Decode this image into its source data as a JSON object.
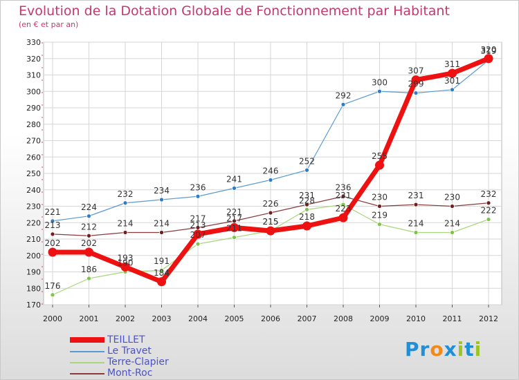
{
  "title": "Evolution de la Dotation Globale de Fonctionnement par Habitant",
  "subtitle": "(en € et par an)",
  "logo": {
    "text": "Proxiti",
    "letters": [
      "P",
      "r",
      "o",
      "x",
      "i",
      "t",
      "i"
    ],
    "colors": [
      "#1f8fd8",
      "#1f8fd8",
      "#f28a1a",
      "#1f8fd8",
      "#9bc428",
      "#1f8fd8",
      "#9bc428"
    ]
  },
  "chart_data": {
    "type": "line",
    "title": "Evolution de la Dotation Globale de Fonctionnement par Habitant",
    "subtitle": "(en € et par an)",
    "xlabel": "",
    "ylabel": "",
    "ylim": [
      170,
      330
    ],
    "yticks": [
      170,
      180,
      190,
      200,
      210,
      220,
      230,
      240,
      250,
      260,
      270,
      280,
      290,
      300,
      310,
      320,
      330
    ],
    "x": [
      "2000",
      "2001",
      "2002",
      "2003",
      "2004",
      "2005",
      "2006",
      "2007",
      "2008",
      "2009",
      "2010",
      "2011",
      "2012"
    ],
    "grid": true,
    "legend": "bottom-left",
    "series": [
      {
        "name": "Le Travet",
        "color": "#5a9ad2",
        "marker": "#2e7bc8",
        "width": 1.2,
        "values": [
          221,
          224,
          232,
          234,
          236,
          241,
          246,
          252,
          292,
          300,
          299,
          301,
          319
        ]
      },
      {
        "name": "Terre-Clapier",
        "color": "#a8d67a",
        "marker": "#7cc44a",
        "width": 1.2,
        "values": [
          176,
          186,
          190,
          191,
          207,
          211,
          215,
          228,
          231,
          219,
          214,
          214,
          222
        ]
      },
      {
        "name": "Mont-Roc",
        "color": "#8a3a3a",
        "marker": "#6e1f1f",
        "width": 1.2,
        "values": [
          213,
          212,
          214,
          214,
          217,
          221,
          226,
          231,
          236,
          230,
          231,
          230,
          232
        ]
      },
      {
        "name": "TEILLET",
        "color": "#ee1111",
        "marker": "#ee1111",
        "width": 7,
        "values": [
          202,
          202,
          193,
          184,
          213,
          217,
          215,
          218,
          223,
          255,
          307,
          311,
          320
        ]
      }
    ],
    "labels": [
      {
        "text": "221",
        "x": "2000",
        "y": 221,
        "pos": "above"
      },
      {
        "text": "224",
        "x": "2001",
        "y": 224,
        "pos": "above"
      },
      {
        "text": "232",
        "x": "2002",
        "y": 232,
        "pos": "above"
      },
      {
        "text": "234",
        "x": "2003",
        "y": 234,
        "pos": "above"
      },
      {
        "text": "236",
        "x": "2004",
        "y": 236,
        "pos": "above"
      },
      {
        "text": "241",
        "x": "2005",
        "y": 241,
        "pos": "above"
      },
      {
        "text": "246",
        "x": "2006",
        "y": 246,
        "pos": "above"
      },
      {
        "text": "252",
        "x": "2007",
        "y": 252,
        "pos": "above"
      },
      {
        "text": "292",
        "x": "2008",
        "y": 292,
        "pos": "above"
      },
      {
        "text": "300",
        "x": "2009",
        "y": 300,
        "pos": "above"
      },
      {
        "text": "299",
        "x": "2010",
        "y": 299,
        "pos": "above"
      },
      {
        "text": "301",
        "x": "2011",
        "y": 301,
        "pos": "above"
      },
      {
        "text": "319",
        "x": "2012",
        "y": 319,
        "pos": "above"
      },
      {
        "text": "176",
        "x": "2000",
        "y": 176,
        "pos": "above"
      },
      {
        "text": "186",
        "x": "2001",
        "y": 186,
        "pos": "above"
      },
      {
        "text": "190",
        "x": "2002",
        "y": 190,
        "pos": "above"
      },
      {
        "text": "191",
        "x": "2003",
        "y": 191,
        "pos": "above"
      },
      {
        "text": "207",
        "x": "2004",
        "y": 207,
        "pos": "above"
      },
      {
        "text": "211",
        "x": "2005",
        "y": 211,
        "pos": "above"
      },
      {
        "text": "215",
        "x": "2006",
        "y": 215,
        "pos": "above"
      },
      {
        "text": "228",
        "x": "2007",
        "y": 228,
        "pos": "above"
      },
      {
        "text": "231",
        "x": "2008",
        "y": 231,
        "pos": "above"
      },
      {
        "text": "219",
        "x": "2009",
        "y": 219,
        "pos": "above"
      },
      {
        "text": "214",
        "x": "2010",
        "y": 214,
        "pos": "above"
      },
      {
        "text": "214",
        "x": "2011",
        "y": 214,
        "pos": "above"
      },
      {
        "text": "222",
        "x": "2012",
        "y": 222,
        "pos": "above"
      },
      {
        "text": "213",
        "x": "2000",
        "y": 213,
        "pos": "above"
      },
      {
        "text": "212",
        "x": "2001",
        "y": 212,
        "pos": "above"
      },
      {
        "text": "214",
        "x": "2002",
        "y": 214,
        "pos": "above"
      },
      {
        "text": "214",
        "x": "2003",
        "y": 214,
        "pos": "above"
      },
      {
        "text": "217",
        "x": "2004",
        "y": 217,
        "pos": "above"
      },
      {
        "text": "221",
        "x": "2005",
        "y": 221,
        "pos": "above"
      },
      {
        "text": "226",
        "x": "2006",
        "y": 226,
        "pos": "above"
      },
      {
        "text": "231",
        "x": "2007",
        "y": 231,
        "pos": "above"
      },
      {
        "text": "236",
        "x": "2008",
        "y": 236,
        "pos": "above"
      },
      {
        "text": "230",
        "x": "2009",
        "y": 230,
        "pos": "above"
      },
      {
        "text": "231",
        "x": "2010",
        "y": 231,
        "pos": "above"
      },
      {
        "text": "230",
        "x": "2011",
        "y": 230,
        "pos": "above"
      },
      {
        "text": "232",
        "x": "2012",
        "y": 232,
        "pos": "above"
      },
      {
        "text": "202",
        "x": "2000",
        "y": 202,
        "pos": "above"
      },
      {
        "text": "202",
        "x": "2001",
        "y": 202,
        "pos": "above"
      },
      {
        "text": "193",
        "x": "2002",
        "y": 193,
        "pos": "above"
      },
      {
        "text": "184",
        "x": "2003",
        "y": 184,
        "pos": "above"
      },
      {
        "text": "213",
        "x": "2004",
        "y": 213,
        "pos": "above"
      },
      {
        "text": "217",
        "x": "2005",
        "y": 217,
        "pos": "above"
      },
      {
        "text": "215",
        "x": "2006",
        "y": 215,
        "pos": "above"
      },
      {
        "text": "218",
        "x": "2007",
        "y": 218,
        "pos": "above"
      },
      {
        "text": "223",
        "x": "2008",
        "y": 223,
        "pos": "above"
      },
      {
        "text": "255",
        "x": "2009",
        "y": 255,
        "pos": "above"
      },
      {
        "text": "307",
        "x": "2010",
        "y": 307,
        "pos": "above"
      },
      {
        "text": "311",
        "x": "2011",
        "y": 311,
        "pos": "above"
      },
      {
        "text": "320",
        "x": "2012",
        "y": 320,
        "pos": "above"
      }
    ]
  },
  "legend_items": [
    {
      "name": "TEILLET",
      "color": "#ee1111",
      "thick": true
    },
    {
      "name": "Le Travet",
      "color": "#5a9ad2",
      "thick": false
    },
    {
      "name": "Terre-Clapier",
      "color": "#a8d67a",
      "thick": false
    },
    {
      "name": "Mont-Roc",
      "color": "#8a3a3a",
      "thick": false
    }
  ]
}
